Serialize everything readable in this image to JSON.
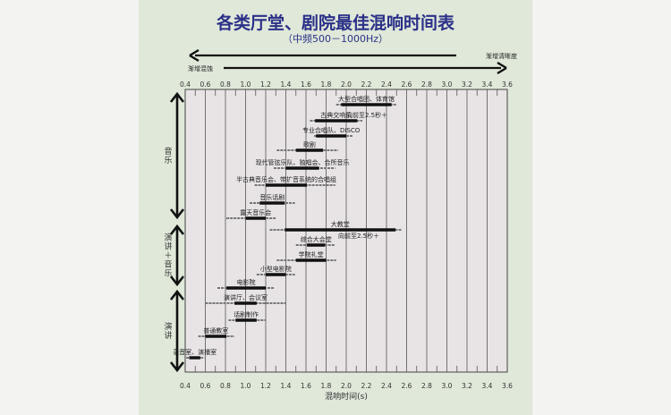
{
  "chart_data": {
    "type": "bar",
    "subtype": "floating-range",
    "title": "各类厅堂、剧院最佳混响时间表",
    "subtitle": "（中频500－1000Hz）",
    "xlabel": "混响时间(s)",
    "xlim": [
      0.4,
      3.6
    ],
    "xticks": [
      "0.4",
      "0.6",
      "0.8",
      "1.0",
      "1.2",
      "1.4",
      "1.6",
      "1.8",
      "2.0",
      "2.2",
      "2.4",
      "2.6",
      "2.8",
      "3.0",
      "3.2",
      "3.4",
      "3.6"
    ],
    "grid": true,
    "arrow_left_label": "渐增清晰度",
    "arrow_right_label": "渐增混蚀",
    "categories": [
      {
        "name": "音乐",
        "vertical": [
          "音",
          "乐"
        ]
      },
      {
        "name": "演讲＋音乐",
        "vertical": [
          "演",
          "讲",
          "＋",
          "音",
          "乐"
        ]
      },
      {
        "name": "演讲",
        "vertical": [
          "演",
          "讲"
        ]
      }
    ],
    "rows": [
      {
        "label": "大型合唱团、体育馆",
        "range": [
          1.9,
          2.5
        ],
        "optimal": [
          1.95,
          2.45
        ],
        "note": "",
        "group": "音乐"
      },
      {
        "label": "古典交响乐",
        "range": [
          1.64,
          2.16
        ],
        "optimal": [
          1.69,
          2.11
        ],
        "note": "向前至2.5秒＋",
        "group": "音乐"
      },
      {
        "label": "专业合唱队、DISCO",
        "range": [
          1.68,
          2.07
        ],
        "optimal": [
          1.7,
          2.0
        ],
        "note": "",
        "group": "音乐"
      },
      {
        "label": "歌剧",
        "range": [
          1.31,
          1.92
        ],
        "optimal": [
          1.5,
          1.77
        ],
        "note": "",
        "group": "音乐"
      },
      {
        "label": "现代管弦乐队、独唱会、合所音乐",
        "range": [
          1.28,
          1.89
        ],
        "optimal": [
          1.4,
          1.73
        ],
        "note": "",
        "group": "音乐"
      },
      {
        "label": "半古典音乐会、带扩音系统的合唱组",
        "range": [
          1.09,
          1.89
        ],
        "optimal": [
          1.2,
          1.61
        ],
        "note": "",
        "group": "音乐"
      },
      {
        "label": "音乐话剧",
        "range": [
          1.04,
          1.49
        ],
        "optimal": [
          1.14,
          1.39
        ],
        "note": "",
        "group": "音乐"
      },
      {
        "label": "露天音乐会",
        "range": [
          0.81,
          1.3
        ],
        "optimal": [
          1.0,
          1.2
        ],
        "note": "",
        "group": "音乐"
      },
      {
        "label": "大教堂",
        "range": [
          1.24,
          2.55
        ],
        "optimal": [
          1.39,
          2.49
        ],
        "note": "向前至2.5秒＋",
        "group": "演讲＋音乐"
      },
      {
        "label": "综合大会堂",
        "range": [
          1.5,
          1.89
        ],
        "optimal": [
          1.61,
          1.79
        ],
        "note": "",
        "group": "演讲＋音乐"
      },
      {
        "label": "学院礼堂",
        "range": [
          1.31,
          1.9
        ],
        "optimal": [
          1.5,
          1.8
        ],
        "note": "",
        "group": "演讲＋音乐"
      },
      {
        "label": "小型电影院",
        "range": [
          1.11,
          1.49
        ],
        "optimal": [
          1.2,
          1.4
        ],
        "note": "",
        "group": "演讲＋音乐"
      },
      {
        "label": "电影院",
        "range": [
          0.72,
          1.28
        ],
        "optimal": [
          0.81,
          1.2
        ],
        "note": "",
        "group": "演讲"
      },
      {
        "label": "演讲厅、会议室",
        "range": [
          0.6,
          1.4
        ],
        "optimal": [
          0.89,
          1.11
        ],
        "note": "",
        "group": "演讲"
      },
      {
        "label": "话剧制作",
        "range": [
          0.83,
          1.2
        ],
        "optimal": [
          0.9,
          1.11
        ],
        "note": "",
        "group": "演讲"
      },
      {
        "label": "普通教室",
        "range": [
          0.53,
          0.89
        ],
        "optimal": [
          0.6,
          0.81
        ],
        "note": "",
        "group": "演讲"
      },
      {
        "label": "录音室、演播室",
        "range": [
          0.41,
          0.59
        ],
        "optimal": [
          0.44,
          0.55
        ],
        "note": "",
        "group": "演讲"
      }
    ],
    "colors": {
      "background": "#dfe8d9",
      "plot": "#e8e4e6",
      "title": "#2b3088",
      "optimal_bar": "#111111",
      "range_bar": "#777777"
    }
  }
}
